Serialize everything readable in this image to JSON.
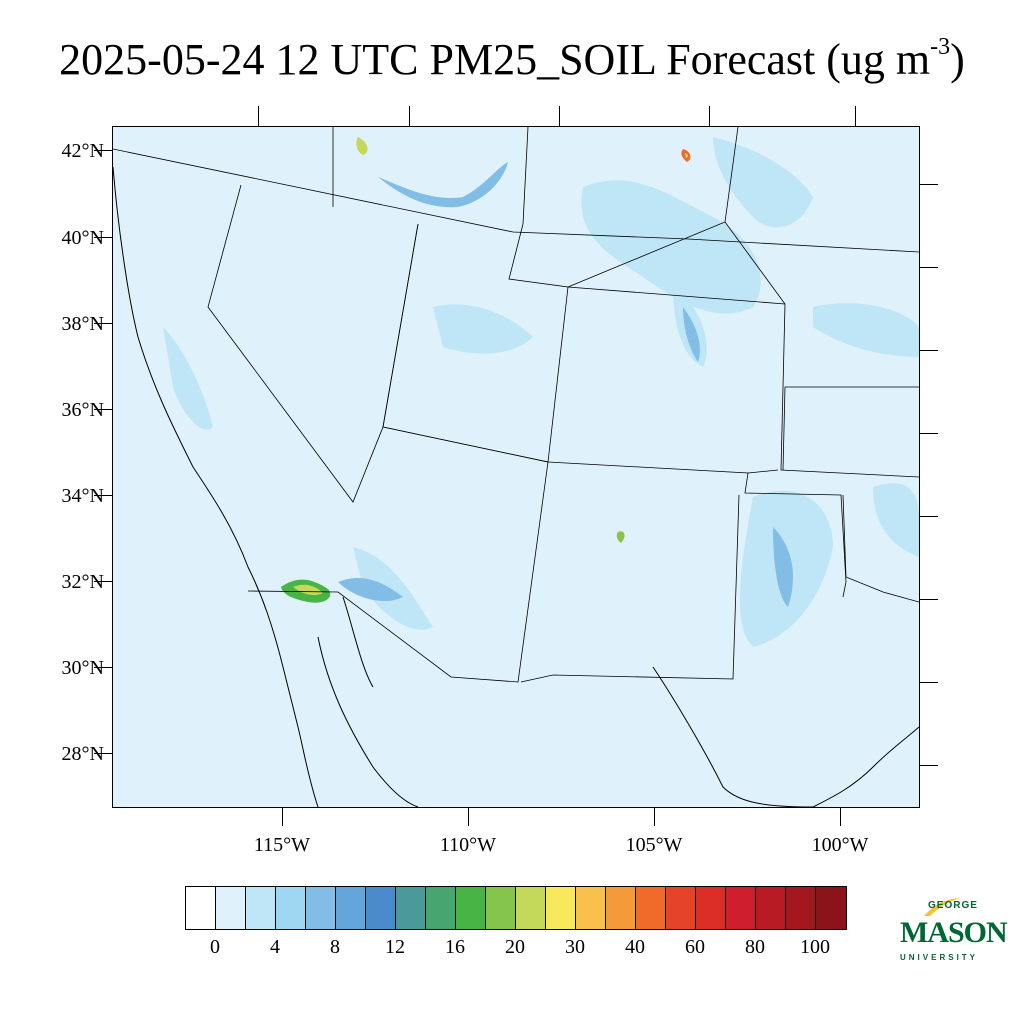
{
  "title": {
    "text": "2025-05-24 12 UTC PM25_SOIL Forecast (ug m",
    "superscript": "-3",
    "close": ")"
  },
  "map": {
    "lat_labels": [
      "42°N",
      "40°N",
      "38°N",
      "36°N",
      "34°N",
      "32°N",
      "30°N",
      "28°N"
    ],
    "lon_labels": [
      "115°W",
      "110°W",
      "105°W",
      "100°W"
    ],
    "background_color": "#dff2fb"
  },
  "colorbar": {
    "colors": [
      "#ffffff",
      "#dff2fb",
      "#bee6f7",
      "#9fd6f2",
      "#82bde6",
      "#64a5dc",
      "#4a8bcc",
      "#4b9a99",
      "#47a56f",
      "#48b446",
      "#84c64c",
      "#c4d85a",
      "#f7e85c",
      "#f8c04a",
      "#f59a3a",
      "#f06a2a",
      "#e54428",
      "#db2c26",
      "#d01f2c",
      "#b81b24",
      "#a3181f",
      "#8a141a"
    ],
    "labels": [
      "0",
      "4",
      "8",
      "12",
      "16",
      "20",
      "30",
      "40",
      "60",
      "80",
      "100"
    ]
  },
  "logo": {
    "line1": "GEORGE",
    "line2": "MASON",
    "line3": "UNIVERSITY",
    "color": "#006633",
    "accent": "#f2c530"
  }
}
